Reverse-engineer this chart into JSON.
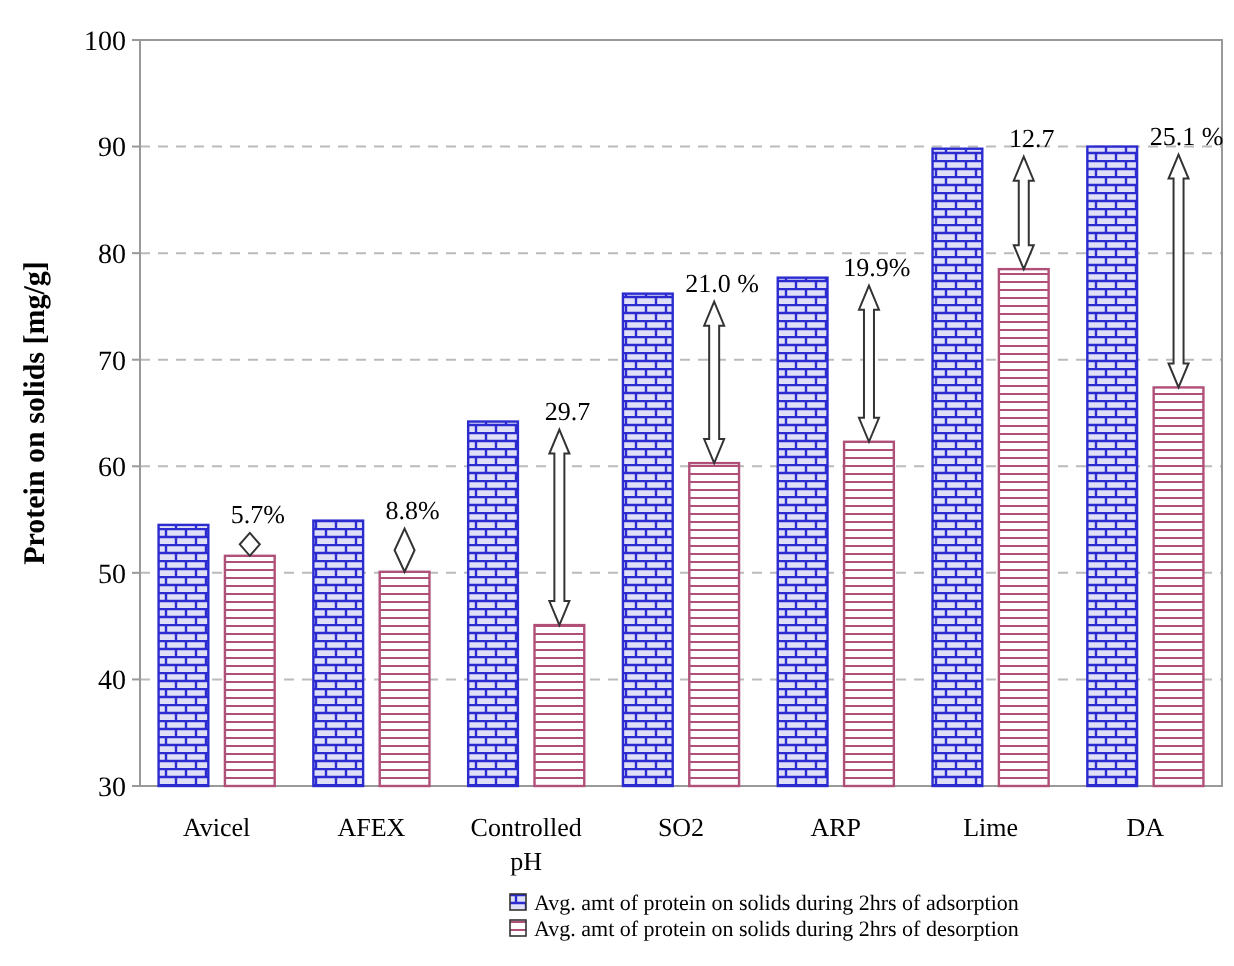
{
  "chart_data": {
    "type": "bar",
    "ylabel": "Protein on solids [mg/g]",
    "categories": [
      "Avicel",
      "AFEX",
      "Controlled pH",
      "SO2",
      "ARP",
      "Lime",
      "DA"
    ],
    "series": [
      {
        "name": "Avg. amt of protein on solids during 2hrs of adsorption",
        "color": "#2b2bd0",
        "values": [
          54.5,
          54.9,
          64.2,
          76.2,
          77.7,
          89.8,
          90.0
        ]
      },
      {
        "name": "Avg. amt of protein on solids during 2hrs of desorption",
        "color": "#b05078",
        "values": [
          51.6,
          50.1,
          45.1,
          60.3,
          62.3,
          78.5,
          67.4
        ]
      }
    ],
    "ylim": [
      30,
      100
    ],
    "yticks": [
      30,
      40,
      50,
      60,
      70,
      80,
      90,
      100
    ],
    "grid": "y",
    "legend": "bottom",
    "annotations": [
      {
        "text": "5.7%",
        "x": "Avicel",
        "y": 54.5
      },
      {
        "text": "8.8%",
        "x": "AFEX",
        "y": 54.9
      },
      {
        "text": "29.7",
        "x": "Controlled pH",
        "y": 64.2
      },
      {
        "text": "21.0 %",
        "x": "SO2",
        "y": 76.2
      },
      {
        "text": "19.9%",
        "x": "ARP",
        "y": 77.7
      },
      {
        "text": "12.7",
        "x": "Lime",
        "y": 89.8
      },
      {
        "text": "25.1 %",
        "x": "DA",
        "y": 90.0
      }
    ]
  }
}
